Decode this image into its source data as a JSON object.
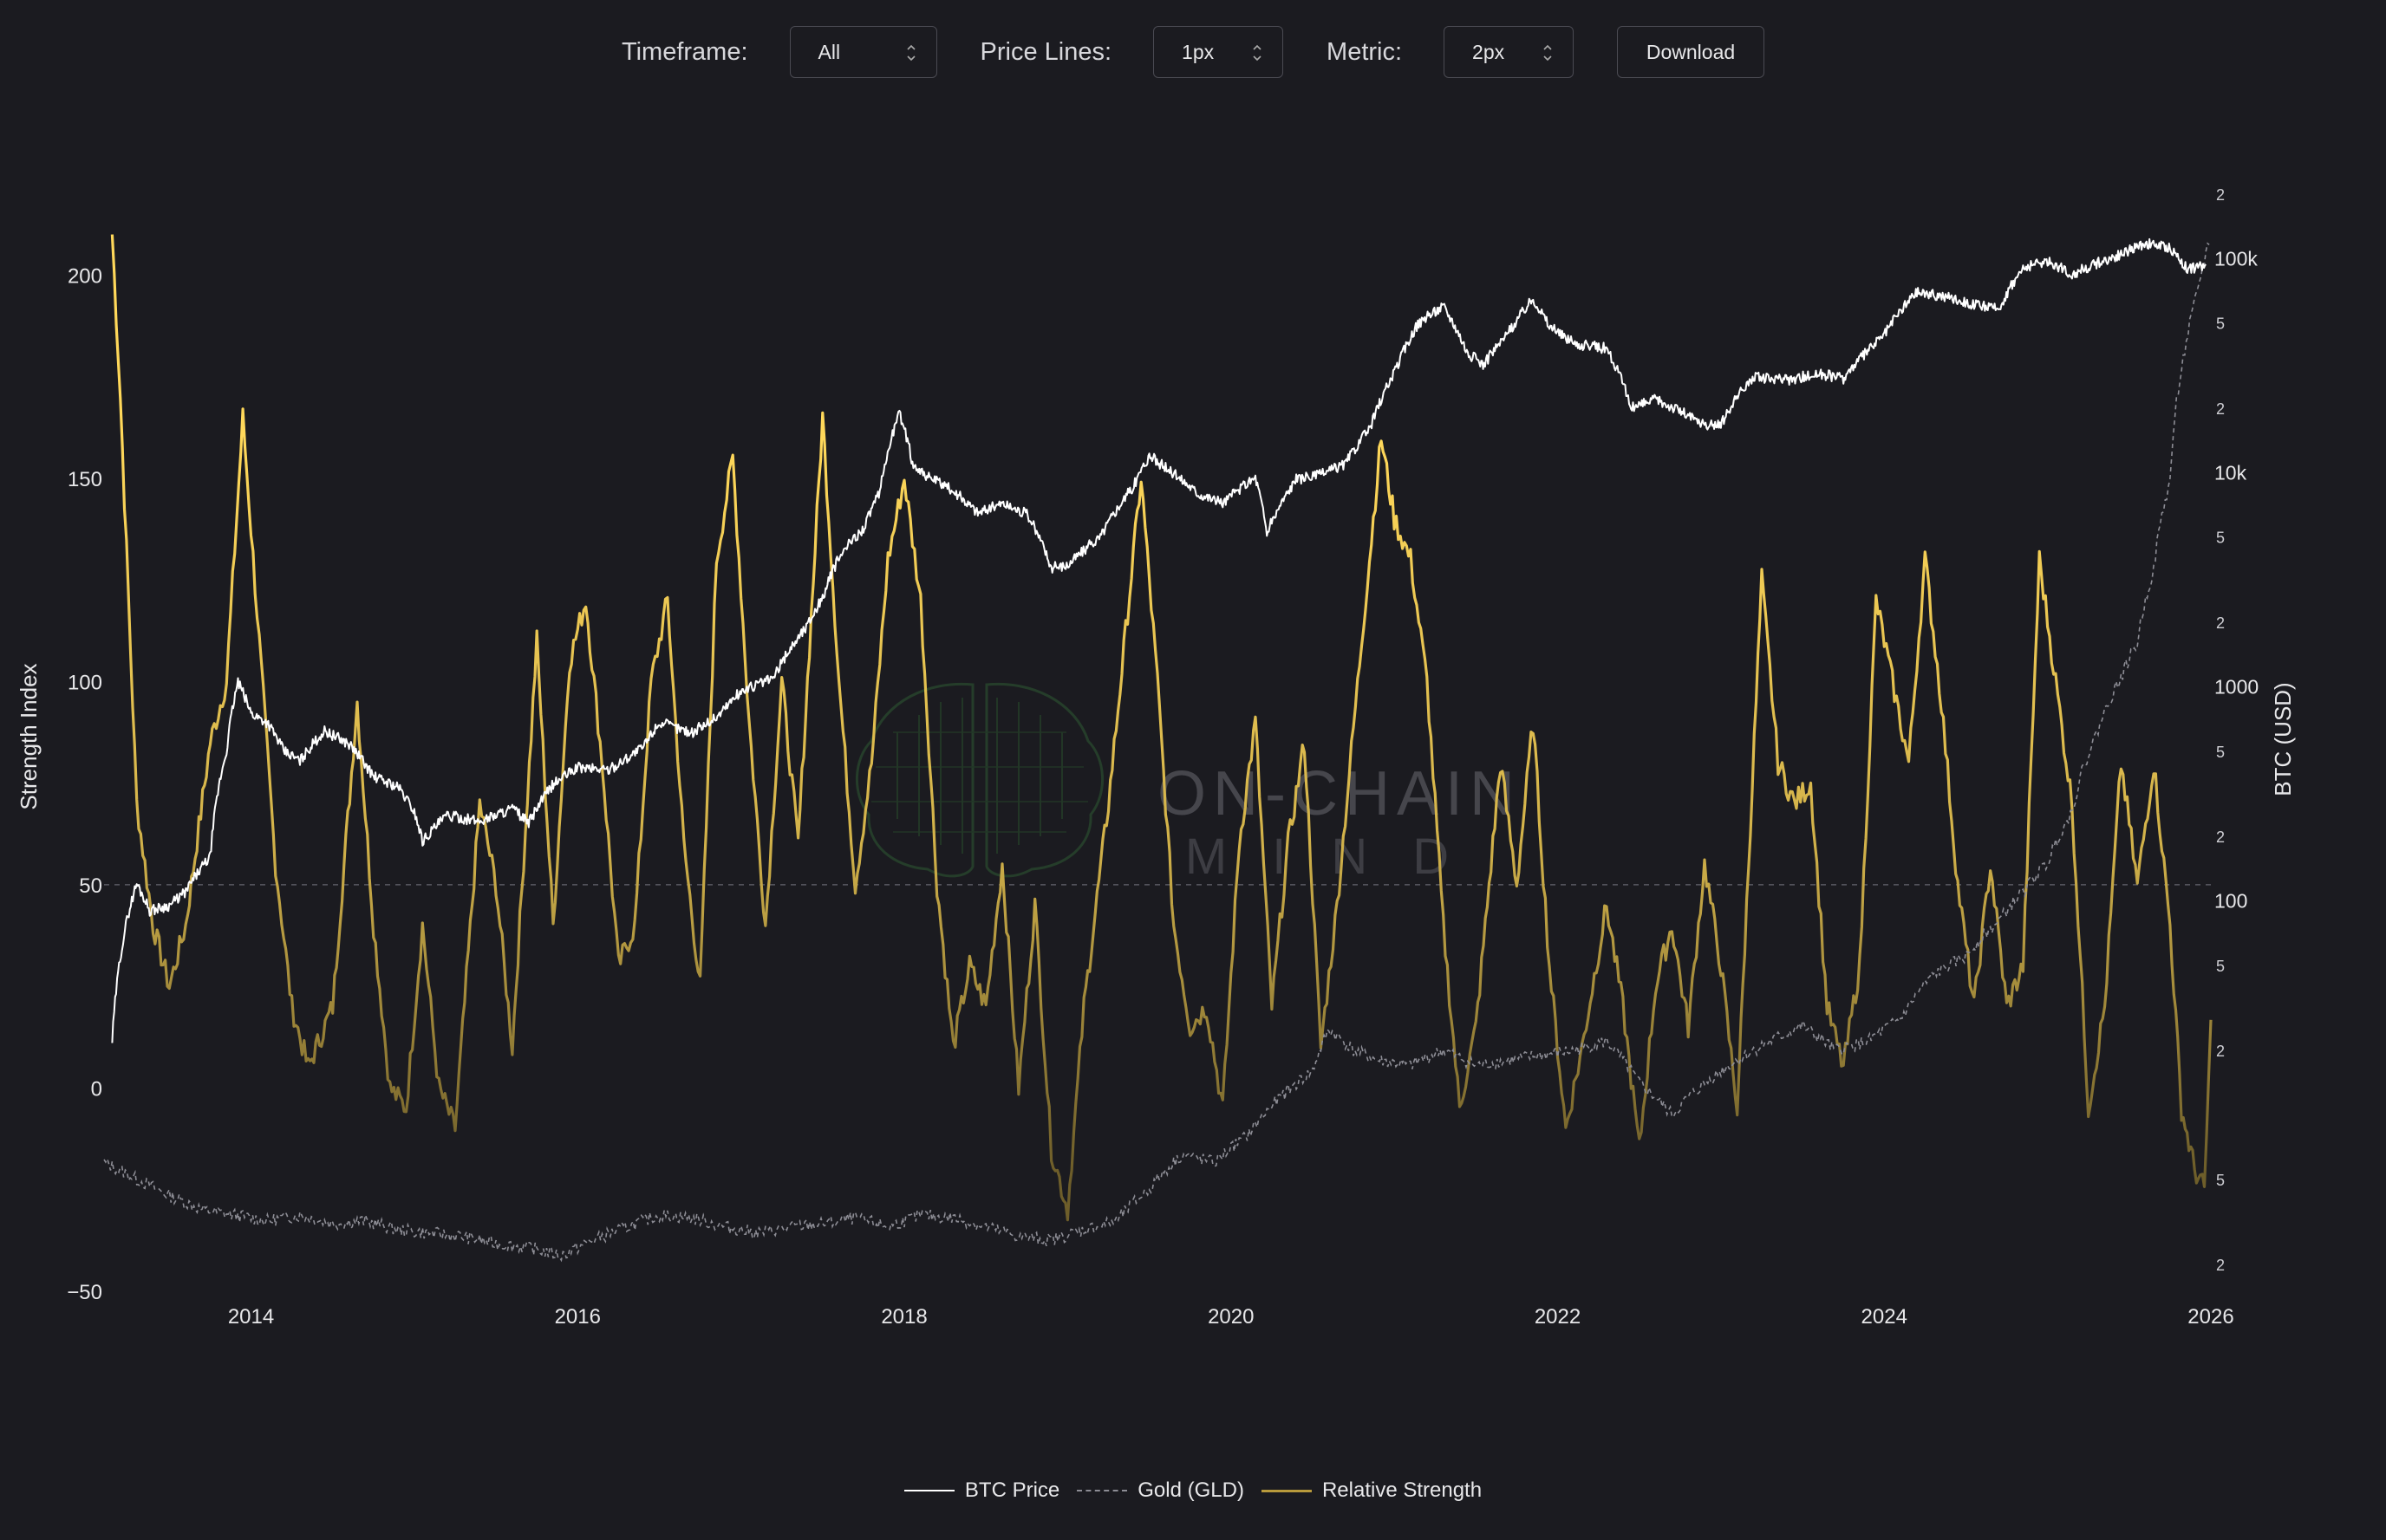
{
  "toolbar": {
    "timeframe_label": "Timeframe:",
    "timeframe_value": "All",
    "price_lines_label": "Price Lines:",
    "price_lines_value": "1px",
    "metric_label": "Metric:",
    "metric_value": "2px",
    "download_label": "Download"
  },
  "watermark": {
    "line1": "ON-CHAIN",
    "line2": "MIND"
  },
  "colors": {
    "background": "#1b1b20",
    "btc": "#ffffff",
    "gold": "#8d8d95",
    "strength": "#f2d060",
    "grid": "#5a5a62"
  },
  "chart_data": {
    "type": "line",
    "x_range": [
      2013.1,
      2026.0
    ],
    "x_ticks": [
      "2014",
      "2016",
      "2018",
      "2020",
      "2022",
      "2024",
      "2026"
    ],
    "left_axis": {
      "label": "Strength Index",
      "range": [
        -50,
        225
      ],
      "ticks": [
        "−50",
        "0",
        "50",
        "100",
        "150",
        "200"
      ],
      "reference_line": 50
    },
    "right_axis": {
      "label": "BTC (USD)",
      "scale": "log",
      "range": [
        1.5,
        250000
      ],
      "major_ticks": [
        "100",
        "1000",
        "10k",
        "100k"
      ],
      "minor_ticks": [
        "2",
        "5",
        "2",
        "5",
        "2",
        "5",
        "2",
        "5",
        "2",
        "5",
        "2"
      ]
    },
    "legend": [
      "BTC Price",
      "Gold (GLD)",
      "Relative Strength"
    ],
    "series": [
      {
        "name": "BTC Price",
        "axis": "right",
        "points": [
          [
            2013.15,
            22
          ],
          [
            2013.3,
            120
          ],
          [
            2013.38,
            90
          ],
          [
            2013.5,
            95
          ],
          [
            2013.6,
            110
          ],
          [
            2013.75,
            160
          ],
          [
            2013.85,
            500
          ],
          [
            2013.92,
            1050
          ],
          [
            2014.0,
            750
          ],
          [
            2014.1,
            680
          ],
          [
            2014.2,
            500
          ],
          [
            2014.3,
            450
          ],
          [
            2014.45,
            620
          ],
          [
            2014.6,
            540
          ],
          [
            2014.75,
            380
          ],
          [
            2014.9,
            340
          ],
          [
            2015.0,
            260
          ],
          [
            2015.05,
            190
          ],
          [
            2015.2,
            250
          ],
          [
            2015.4,
            235
          ],
          [
            2015.6,
            270
          ],
          [
            2015.7,
            230
          ],
          [
            2015.85,
            350
          ],
          [
            2016.0,
            420
          ],
          [
            2016.2,
            410
          ],
          [
            2016.4,
            520
          ],
          [
            2016.5,
            680
          ],
          [
            2016.7,
            610
          ],
          [
            2016.85,
            720
          ],
          [
            2017.0,
            950
          ],
          [
            2017.2,
            1100
          ],
          [
            2017.4,
            1900
          ],
          [
            2017.5,
            2600
          ],
          [
            2017.6,
            4000
          ],
          [
            2017.75,
            5500
          ],
          [
            2017.85,
            8000
          ],
          [
            2017.97,
            19000
          ],
          [
            2018.05,
            11000
          ],
          [
            2018.15,
            9500
          ],
          [
            2018.3,
            8200
          ],
          [
            2018.45,
            6500
          ],
          [
            2018.6,
            7200
          ],
          [
            2018.75,
            6400
          ],
          [
            2018.9,
            3600
          ],
          [
            2019.0,
            3700
          ],
          [
            2019.2,
            5000
          ],
          [
            2019.4,
            8500
          ],
          [
            2019.5,
            12000
          ],
          [
            2019.6,
            10500
          ],
          [
            2019.8,
            8000
          ],
          [
            2019.95,
            7200
          ],
          [
            2020.15,
            9500
          ],
          [
            2020.22,
            5200
          ],
          [
            2020.4,
            9300
          ],
          [
            2020.55,
            9800
          ],
          [
            2020.7,
            11000
          ],
          [
            2020.85,
            16000
          ],
          [
            2021.0,
            29000
          ],
          [
            2021.15,
            50000
          ],
          [
            2021.3,
            60000
          ],
          [
            2021.45,
            36000
          ],
          [
            2021.55,
            32000
          ],
          [
            2021.7,
            45000
          ],
          [
            2021.85,
            65000
          ],
          [
            2021.95,
            48000
          ],
          [
            2022.1,
            40000
          ],
          [
            2022.3,
            38000
          ],
          [
            2022.45,
            20000
          ],
          [
            2022.6,
            22000
          ],
          [
            2022.75,
            19500
          ],
          [
            2022.9,
            16500
          ],
          [
            2023.0,
            16800
          ],
          [
            2023.2,
            28000
          ],
          [
            2023.4,
            27000
          ],
          [
            2023.6,
            29000
          ],
          [
            2023.75,
            27500
          ],
          [
            2023.9,
            37000
          ],
          [
            2024.0,
            44000
          ],
          [
            2024.2,
            70000
          ],
          [
            2024.4,
            66000
          ],
          [
            2024.55,
            61000
          ],
          [
            2024.7,
            58000
          ],
          [
            2024.85,
            90000
          ],
          [
            2025.0,
            98000
          ],
          [
            2025.15,
            84000
          ],
          [
            2025.3,
            95000
          ],
          [
            2025.45,
            105000
          ],
          [
            2025.6,
            118000
          ],
          [
            2025.75,
            112000
          ],
          [
            2025.85,
            90000
          ],
          [
            2025.97,
            92000
          ]
        ]
      },
      {
        "name": "Gold (GLD)",
        "axis": "right",
        "points": [
          [
            2013.1,
            6
          ],
          [
            2013.3,
            5
          ],
          [
            2013.5,
            4.2
          ],
          [
            2013.7,
            3.6
          ],
          [
            2013.9,
            3.4
          ],
          [
            2014.1,
            3.2
          ],
          [
            2014.3,
            3.4
          ],
          [
            2014.5,
            3.1
          ],
          [
            2014.7,
            3.2
          ],
          [
            2014.9,
            2.9
          ],
          [
            2015.1,
            2.8
          ],
          [
            2015.3,
            2.7
          ],
          [
            2015.5,
            2.5
          ],
          [
            2015.7,
            2.4
          ],
          [
            2015.9,
            2.2
          ],
          [
            2016.1,
            2.6
          ],
          [
            2016.3,
            3.0
          ],
          [
            2016.5,
            3.4
          ],
          [
            2016.7,
            3.3
          ],
          [
            2016.9,
            3.0
          ],
          [
            2017.1,
            2.8
          ],
          [
            2017.3,
            3.0
          ],
          [
            2017.5,
            3.1
          ],
          [
            2017.7,
            3.3
          ],
          [
            2017.9,
            3.0
          ],
          [
            2018.1,
            3.4
          ],
          [
            2018.3,
            3.3
          ],
          [
            2018.5,
            3.0
          ],
          [
            2018.7,
            2.7
          ],
          [
            2018.9,
            2.6
          ],
          [
            2019.1,
            2.9
          ],
          [
            2019.3,
            3.2
          ],
          [
            2019.5,
            4.5
          ],
          [
            2019.7,
            6.5
          ],
          [
            2019.9,
            6.0
          ],
          [
            2020.1,
            8.0
          ],
          [
            2020.3,
            12
          ],
          [
            2020.5,
            16
          ],
          [
            2020.6,
            25
          ],
          [
            2020.75,
            20
          ],
          [
            2020.9,
            18
          ],
          [
            2021.1,
            17
          ],
          [
            2021.3,
            20
          ],
          [
            2021.5,
            17
          ],
          [
            2021.7,
            18
          ],
          [
            2021.9,
            19
          ],
          [
            2022.1,
            20
          ],
          [
            2022.3,
            22
          ],
          [
            2022.5,
            14
          ],
          [
            2022.7,
            10
          ],
          [
            2022.9,
            14
          ],
          [
            2023.1,
            18
          ],
          [
            2023.3,
            22
          ],
          [
            2023.5,
            26
          ],
          [
            2023.7,
            20
          ],
          [
            2023.9,
            22
          ],
          [
            2024.1,
            28
          ],
          [
            2024.3,
            45
          ],
          [
            2024.5,
            55
          ],
          [
            2024.7,
            80
          ],
          [
            2024.85,
            110
          ],
          [
            2025.0,
            150
          ],
          [
            2025.15,
            260
          ],
          [
            2025.3,
            600
          ],
          [
            2025.45,
            1100
          ],
          [
            2025.55,
            1600
          ],
          [
            2025.65,
            3500
          ],
          [
            2025.75,
            9000
          ],
          [
            2025.85,
            40000
          ],
          [
            2025.92,
            70000
          ],
          [
            2025.99,
            120000
          ]
        ]
      },
      {
        "name": "Relative Strength",
        "axis": "left",
        "points": [
          [
            2013.15,
            210
          ],
          [
            2013.2,
            170
          ],
          [
            2013.3,
            70
          ],
          [
            2013.4,
            40
          ],
          [
            2013.5,
            25
          ],
          [
            2013.6,
            40
          ],
          [
            2013.75,
            85
          ],
          [
            2013.85,
            100
          ],
          [
            2013.95,
            165
          ],
          [
            2014.05,
            110
          ],
          [
            2014.15,
            55
          ],
          [
            2014.25,
            20
          ],
          [
            2014.35,
            5
          ],
          [
            2014.5,
            20
          ],
          [
            2014.65,
            95
          ],
          [
            2014.75,
            40
          ],
          [
            2014.85,
            0
          ],
          [
            2014.95,
            -5
          ],
          [
            2015.05,
            40
          ],
          [
            2015.15,
            0
          ],
          [
            2015.25,
            -10
          ],
          [
            2015.4,
            70
          ],
          [
            2015.5,
            50
          ],
          [
            2015.6,
            10
          ],
          [
            2015.75,
            110
          ],
          [
            2015.85,
            40
          ],
          [
            2015.95,
            105
          ],
          [
            2016.05,
            120
          ],
          [
            2016.15,
            80
          ],
          [
            2016.25,
            30
          ],
          [
            2016.35,
            40
          ],
          [
            2016.45,
            100
          ],
          [
            2016.55,
            120
          ],
          [
            2016.65,
            60
          ],
          [
            2016.75,
            25
          ],
          [
            2016.85,
            130
          ],
          [
            2016.95,
            155
          ],
          [
            2017.05,
            90
          ],
          [
            2017.15,
            40
          ],
          [
            2017.25,
            100
          ],
          [
            2017.35,
            60
          ],
          [
            2017.5,
            165
          ],
          [
            2017.6,
            100
          ],
          [
            2017.7,
            50
          ],
          [
            2017.8,
            80
          ],
          [
            2017.9,
            130
          ],
          [
            2018.0,
            150
          ],
          [
            2018.1,
            120
          ],
          [
            2018.2,
            50
          ],
          [
            2018.3,
            10
          ],
          [
            2018.4,
            30
          ],
          [
            2018.5,
            20
          ],
          [
            2018.6,
            55
          ],
          [
            2018.7,
            0
          ],
          [
            2018.8,
            45
          ],
          [
            2018.9,
            -15
          ],
          [
            2019.0,
            -30
          ],
          [
            2019.1,
            20
          ],
          [
            2019.25,
            70
          ],
          [
            2019.45,
            150
          ],
          [
            2019.55,
            100
          ],
          [
            2019.65,
            40
          ],
          [
            2019.75,
            15
          ],
          [
            2019.85,
            20
          ],
          [
            2019.95,
            -5
          ],
          [
            2020.05,
            60
          ],
          [
            2020.15,
            90
          ],
          [
            2020.25,
            20
          ],
          [
            2020.35,
            60
          ],
          [
            2020.45,
            85
          ],
          [
            2020.55,
            10
          ],
          [
            2020.65,
            45
          ],
          [
            2020.8,
            110
          ],
          [
            2020.92,
            160
          ],
          [
            2021.0,
            140
          ],
          [
            2021.1,
            130
          ],
          [
            2021.2,
            100
          ],
          [
            2021.3,
            40
          ],
          [
            2021.4,
            -5
          ],
          [
            2021.5,
            15
          ],
          [
            2021.65,
            80
          ],
          [
            2021.75,
            50
          ],
          [
            2021.85,
            90
          ],
          [
            2021.95,
            30
          ],
          [
            2022.05,
            -10
          ],
          [
            2022.15,
            10
          ],
          [
            2022.3,
            45
          ],
          [
            2022.4,
            20
          ],
          [
            2022.5,
            -15
          ],
          [
            2022.6,
            25
          ],
          [
            2022.7,
            40
          ],
          [
            2022.8,
            15
          ],
          [
            2022.9,
            55
          ],
          [
            2023.0,
            30
          ],
          [
            2023.1,
            -5
          ],
          [
            2023.25,
            125
          ],
          [
            2023.35,
            80
          ],
          [
            2023.45,
            70
          ],
          [
            2023.55,
            75
          ],
          [
            2023.65,
            20
          ],
          [
            2023.75,
            5
          ],
          [
            2023.85,
            30
          ],
          [
            2023.95,
            120
          ],
          [
            2024.05,
            100
          ],
          [
            2024.15,
            80
          ],
          [
            2024.25,
            130
          ],
          [
            2024.35,
            95
          ],
          [
            2024.45,
            50
          ],
          [
            2024.55,
            20
          ],
          [
            2024.65,
            55
          ],
          [
            2024.75,
            20
          ],
          [
            2024.85,
            30
          ],
          [
            2024.95,
            130
          ],
          [
            2025.05,
            100
          ],
          [
            2025.15,
            70
          ],
          [
            2025.25,
            -5
          ],
          [
            2025.35,
            20
          ],
          [
            2025.45,
            80
          ],
          [
            2025.55,
            50
          ],
          [
            2025.65,
            80
          ],
          [
            2025.75,
            40
          ],
          [
            2025.82,
            -5
          ],
          [
            2025.9,
            -20
          ],
          [
            2025.96,
            -25
          ],
          [
            2026.0,
            15
          ]
        ]
      }
    ]
  }
}
